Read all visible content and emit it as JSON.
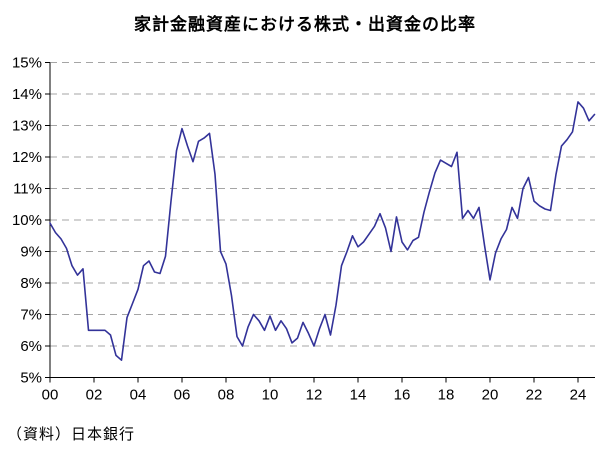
{
  "title": "家計金融資産における株式・出資金の比率",
  "source_note": "（資料）日本銀行",
  "chart_data": {
    "type": "line",
    "title": "家計金融資産における株式・出資金の比率",
    "series_name": "株式・出資金の比率",
    "unit": "%",
    "frequency": "quarterly",
    "start_year": 2000,
    "end_year_fraction": 2024.75,
    "x_tick_labels": [
      "00",
      "02",
      "04",
      "06",
      "08",
      "10",
      "12",
      "14",
      "16",
      "18",
      "20",
      "22",
      "24"
    ],
    "x_tick_year_step": 2,
    "y_tick_labels": [
      "5%",
      "6%",
      "7%",
      "8%",
      "9%",
      "10%",
      "11%",
      "12%",
      "13%",
      "14%",
      "15%"
    ],
    "ylim": [
      5,
      15
    ],
    "grid": "dashed-horizontal",
    "legend": "none",
    "line_color": "#333399",
    "grid_color": "#a5a5a5",
    "axis_color": "#000000",
    "values": [
      9.9,
      9.6,
      9.4,
      9.1,
      8.55,
      8.25,
      8.45,
      6.5,
      6.5,
      6.5,
      6.5,
      6.35,
      5.7,
      5.55,
      6.9,
      7.35,
      7.8,
      8.55,
      8.7,
      8.35,
      8.3,
      8.85,
      10.6,
      12.2,
      12.9,
      12.35,
      11.85,
      12.5,
      12.6,
      12.75,
      11.45,
      9.0,
      8.6,
      7.6,
      6.3,
      6.0,
      6.6,
      7.0,
      6.8,
      6.5,
      6.95,
      6.5,
      6.8,
      6.55,
      6.1,
      6.25,
      6.75,
      6.4,
      6.0,
      6.55,
      7.0,
      6.35,
      7.3,
      8.55,
      9.0,
      9.5,
      9.15,
      9.3,
      9.55,
      9.8,
      10.2,
      9.75,
      9.0,
      10.1,
      9.3,
      9.05,
      9.35,
      9.45,
      10.25,
      10.9,
      11.5,
      11.9,
      11.8,
      11.7,
      12.15,
      10.05,
      10.3,
      10.05,
      10.4,
      9.2,
      8.1,
      8.95,
      9.4,
      9.7,
      10.4,
      10.05,
      11.0,
      11.35,
      10.6,
      10.45,
      10.35,
      10.3,
      11.45,
      12.35,
      12.55,
      12.8,
      13.75,
      13.55,
      13.15,
      13.35
    ]
  }
}
